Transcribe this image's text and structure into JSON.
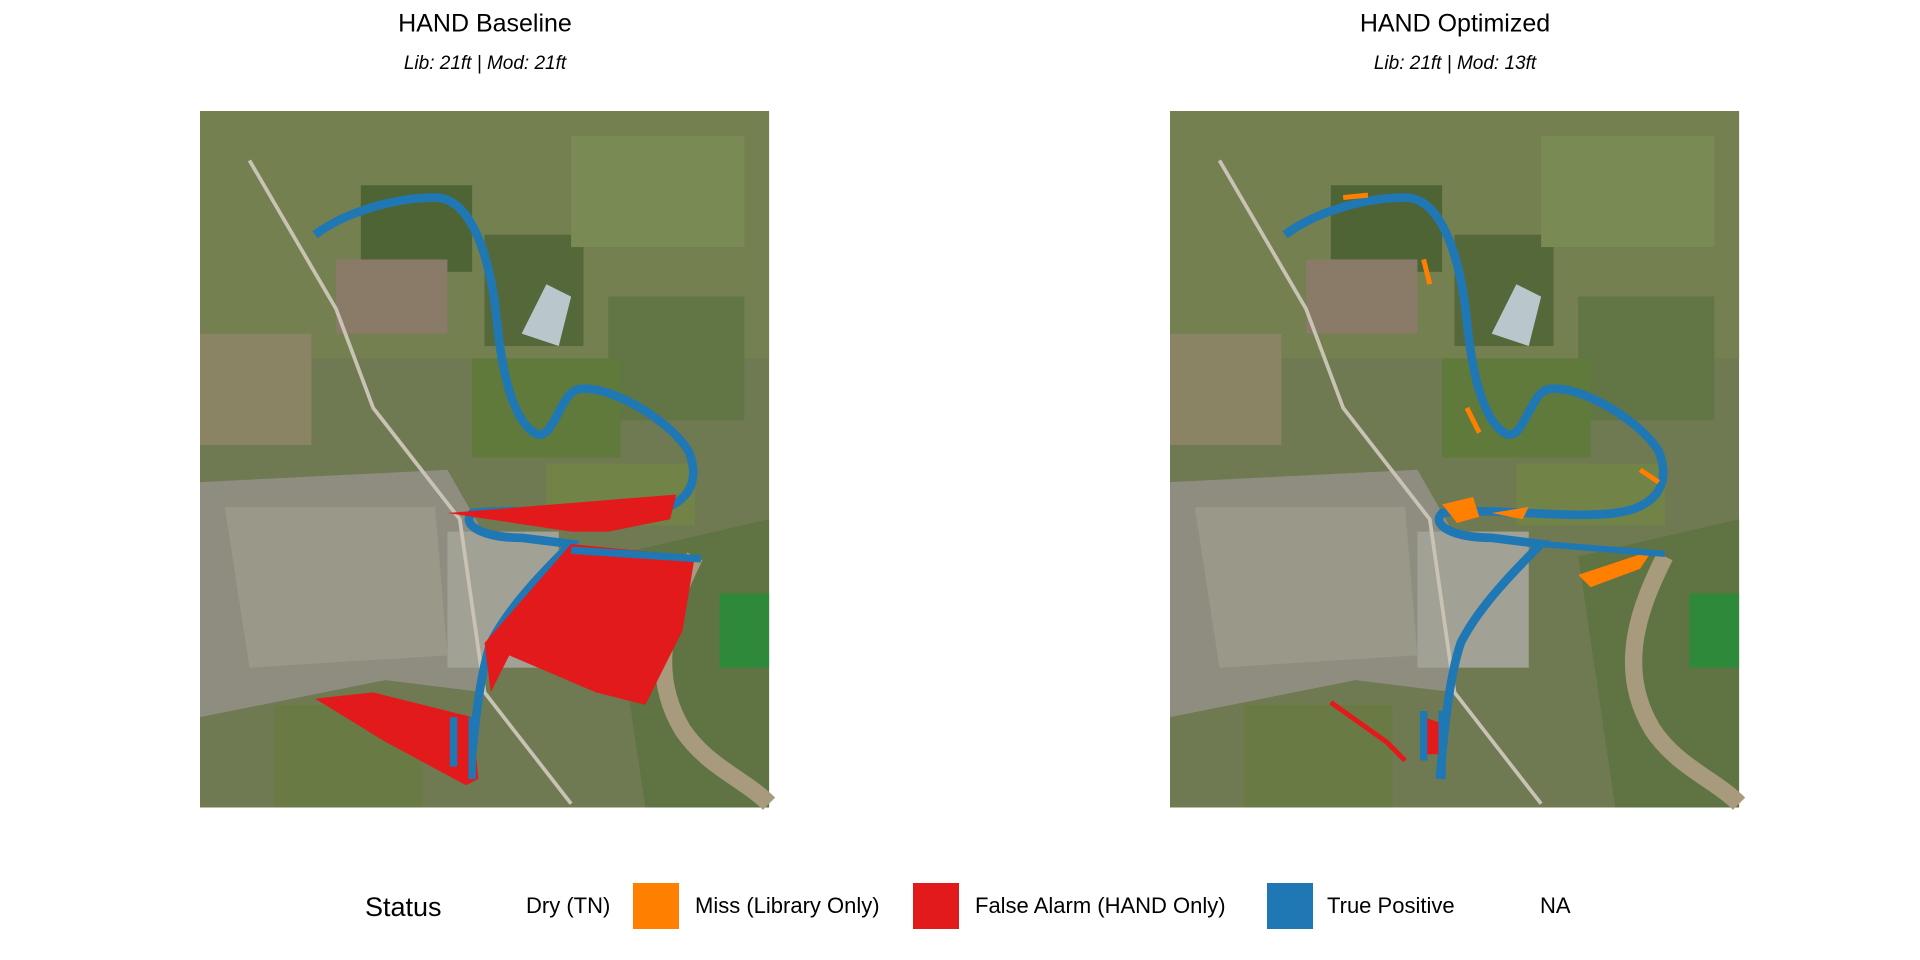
{
  "panels": [
    {
      "title": "HAND Baseline",
      "subtitle": "Lib: 21ft | Mod: 21ft"
    },
    {
      "title": "HAND Optimized",
      "subtitle": "Lib: 21ft | Mod: 13ft"
    }
  ],
  "legend": {
    "title": "Status",
    "items": [
      {
        "label": "Dry (TN)"
      },
      {
        "label": "Miss (Library Only)",
        "color": "#ff7f00"
      },
      {
        "label": "False Alarm (HAND Only)",
        "color": "#e31a1c"
      },
      {
        "label": "True Positive",
        "color": "#1f78b4"
      },
      {
        "label": "NA"
      }
    ]
  }
}
